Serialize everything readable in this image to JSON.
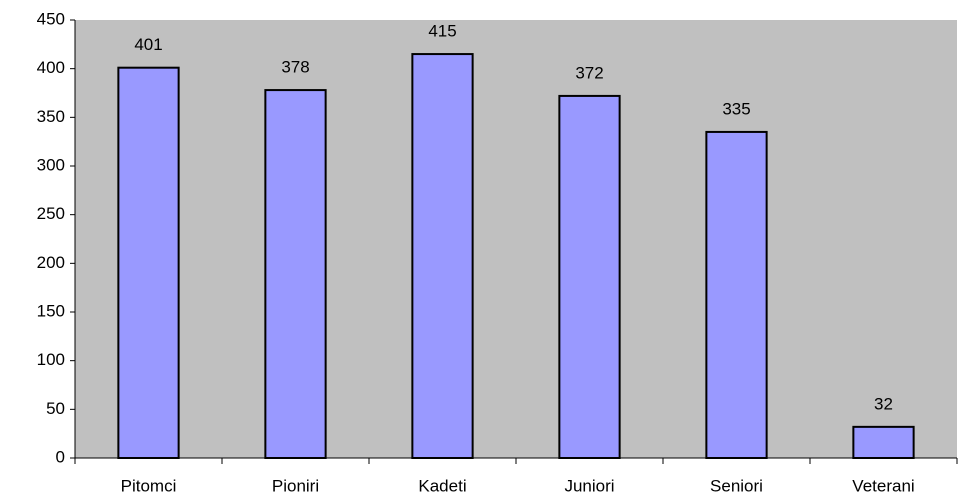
{
  "chart_data": {
    "type": "bar",
    "categories": [
      "Pitomci",
      "Pioniri",
      "Kadeti",
      "Juniori",
      "Seniori",
      "Veterani"
    ],
    "values": [
      401,
      378,
      415,
      372,
      335,
      32
    ],
    "color": "#9999ff",
    "ylim": [
      0,
      450
    ],
    "yticks": [
      0,
      50,
      100,
      150,
      200,
      250,
      300,
      350,
      400,
      450
    ],
    "grid": false
  }
}
